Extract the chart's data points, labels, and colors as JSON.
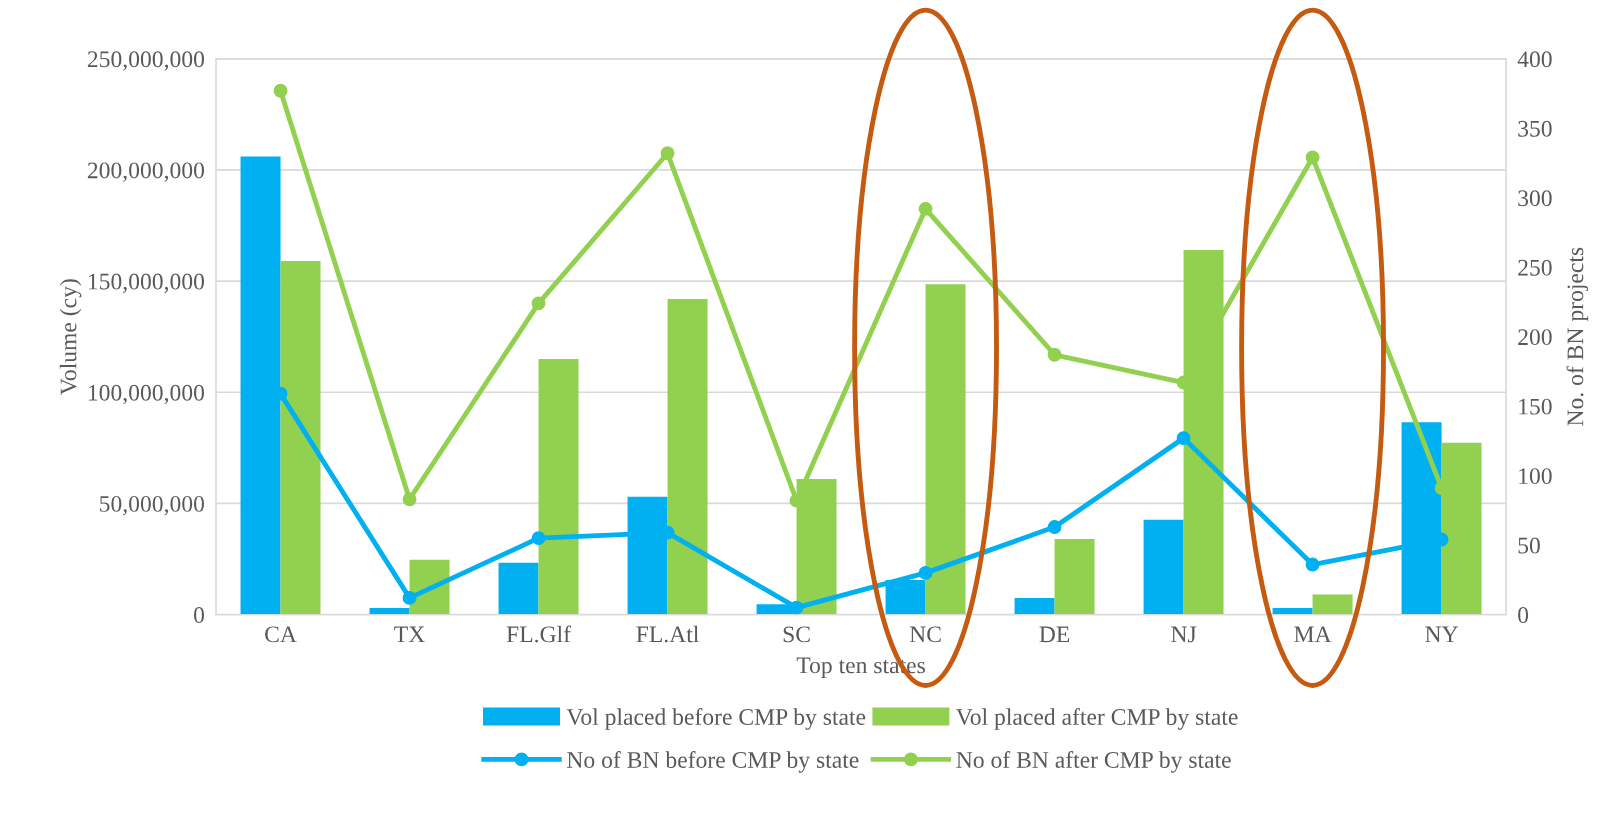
{
  "chart_data": {
    "type": "bar",
    "xlabel": "Top ten states",
    "ylabel": "Volume (cy)",
    "y2label": "No. of BN projects",
    "categories": [
      "CA",
      "TX",
      "FL.Glf",
      "FL.Atl",
      "SC",
      "NC",
      "DE",
      "NJ",
      "MA",
      "NY"
    ],
    "series": [
      {
        "name": "Vol placed before CMP by state",
        "color": "#00b0f0",
        "values": [
          206000000,
          3000000,
          23300000,
          53000000,
          4700000,
          15600000,
          7500000,
          42700000,
          3000000,
          86500000
        ]
      },
      {
        "name": "Vol placed after CMP by state",
        "color": "#92d050",
        "values": [
          159000000,
          24700000,
          115000000,
          142000000,
          61000000,
          148600000,
          34000000,
          164000000,
          9000000,
          77300000
        ]
      },
      {
        "name": "No of BN before CMP by state",
        "type": "line",
        "axis": "y2",
        "color": "#00b0f0",
        "values": [
          159,
          12,
          55,
          59,
          5,
          30,
          63,
          127,
          36,
          54
        ]
      },
      {
        "name": "No of BN after CMP by state",
        "type": "line",
        "axis": "y2",
        "color": "#92d050",
        "values": [
          377,
          83,
          224,
          332,
          82,
          292,
          187,
          167,
          329,
          91
        ]
      }
    ],
    "ylim": [
      0,
      250000000
    ],
    "yticks": [
      {
        "value": 0,
        "label": "0"
      },
      {
        "value": 50000000,
        "label": "50,000,000"
      },
      {
        "value": 100000000,
        "label": "100,000,000"
      },
      {
        "value": 150000000,
        "label": "150,000,000"
      },
      {
        "value": 200000000,
        "label": "200,000,000"
      },
      {
        "value": 250000000,
        "label": "250,000,000"
      }
    ],
    "y2lim": [
      0,
      400
    ],
    "y2ticks": [
      0,
      50,
      100,
      150,
      200,
      250,
      300,
      350,
      400
    ],
    "marker": "circle",
    "line_style": "solid",
    "grid": "y",
    "legend": "bottom"
  }
}
